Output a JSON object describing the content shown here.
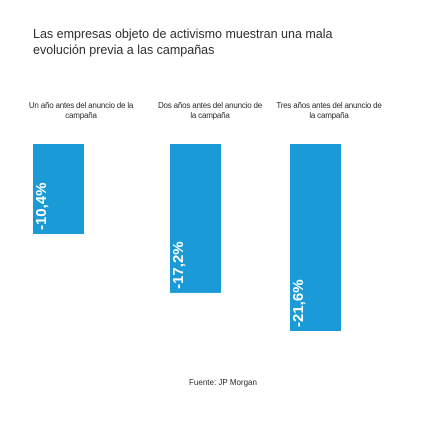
{
  "title": "Las empresas objeto de activismo muestran una mala evolución previa a las campañas",
  "source": "Fuente: JP Morgan",
  "colors": {
    "bar": "#1a9ad6",
    "label_text": "#ffffff"
  },
  "chart_data": {
    "type": "bar",
    "categories": [
      "Un año antes del anuncio de la campaña",
      "Dos años antes del anuncio de la campaña",
      "Tres años antes del anuncio de la campaña"
    ],
    "values": [
      -10.4,
      -17.2,
      -21.6
    ],
    "value_labels": [
      "-10,4%",
      "-17,2%",
      "-21,6%"
    ],
    "xlabel": "",
    "ylabel": "",
    "ylim": [
      -21.6,
      0
    ],
    "grid": false,
    "legend": false
  }
}
